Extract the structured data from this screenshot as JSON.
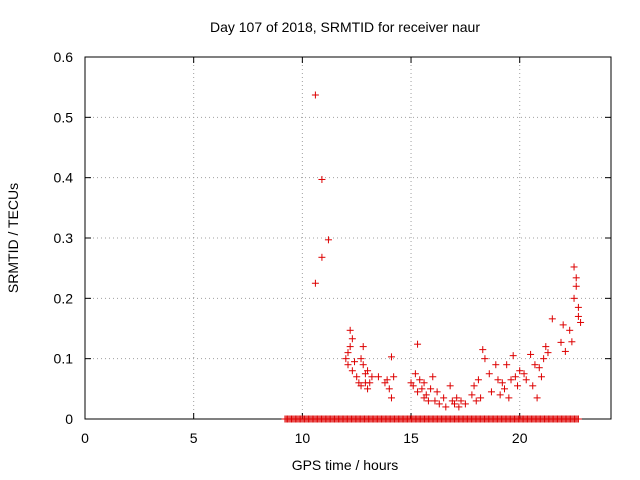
{
  "chart_data": {
    "type": "scatter",
    "title": "Day 107 of 2018, SRMTID for receiver naur",
    "xlabel": "GPS time / hours",
    "ylabel": "SRMTID / TECUs",
    "xlim": [
      0,
      24.2
    ],
    "ylim": [
      0,
      0.6
    ],
    "xticks": [
      0,
      5,
      10,
      15,
      20
    ],
    "xtick_labels": [
      "0",
      "5",
      "10",
      "15",
      "20"
    ],
    "yticks": [
      0,
      0.1,
      0.2,
      0.3,
      0.4,
      0.5,
      0.6
    ],
    "ytick_labels": [
      "0",
      "0.1",
      "0.2",
      "0.3",
      "0.4",
      "0.5",
      "0.6"
    ],
    "grid": true,
    "marker": "+",
    "marker_color": "#dd0000",
    "series": [
      {
        "name": "SRMTID",
        "x": [
          10.6,
          10.9,
          10.9,
          11.2,
          10.6,
          12.0,
          12.1,
          12.1,
          12.2,
          12.2,
          12.3,
          12.3,
          12.4,
          12.5,
          12.6,
          12.7,
          12.7,
          12.8,
          12.8,
          12.9,
          12.9,
          13.0,
          13.0,
          13.1,
          13.2,
          13.5,
          13.8,
          14.0,
          14.1,
          14.2,
          14.1,
          13.9,
          15.0,
          15.1,
          15.2,
          15.3,
          15.3,
          15.4,
          15.5,
          15.6,
          15.6,
          15.7,
          15.8,
          15.9,
          16.0,
          16.1,
          16.2,
          16.3,
          16.5,
          16.6,
          16.8,
          16.9,
          17.0,
          17.1,
          17.2,
          17.3,
          17.5,
          17.8,
          17.9,
          18.0,
          18.1,
          18.2,
          18.3,
          18.4,
          18.6,
          18.7,
          18.9,
          19.0,
          19.1,
          19.2,
          19.3,
          19.4,
          19.5,
          19.6,
          19.7,
          19.8,
          19.9,
          20.0,
          20.2,
          20.3,
          20.5,
          20.6,
          20.7,
          20.8,
          20.9,
          21.0,
          21.1,
          21.2,
          21.3,
          21.5,
          21.9,
          22.0,
          22.1,
          22.3,
          22.4,
          22.5,
          22.5,
          22.6,
          22.6,
          22.7,
          22.7,
          22.8
        ],
        "y": [
          0.537,
          0.397,
          0.268,
          0.297,
          0.225,
          0.1,
          0.11,
          0.09,
          0.12,
          0.147,
          0.133,
          0.08,
          0.095,
          0.07,
          0.06,
          0.1,
          0.055,
          0.12,
          0.09,
          0.06,
          0.075,
          0.08,
          0.05,
          0.06,
          0.07,
          0.07,
          0.06,
          0.05,
          0.103,
          0.07,
          0.035,
          0.065,
          0.06,
          0.055,
          0.075,
          0.045,
          0.124,
          0.065,
          0.05,
          0.035,
          0.06,
          0.04,
          0.03,
          0.05,
          0.07,
          0.03,
          0.045,
          0.025,
          0.035,
          0.02,
          0.055,
          0.03,
          0.025,
          0.035,
          0.02,
          0.03,
          0.025,
          0.04,
          0.055,
          0.03,
          0.065,
          0.035,
          0.115,
          0.1,
          0.075,
          0.045,
          0.09,
          0.065,
          0.04,
          0.06,
          0.05,
          0.09,
          0.035,
          0.065,
          0.105,
          0.07,
          0.055,
          0.08,
          0.075,
          0.065,
          0.107,
          0.055,
          0.09,
          0.035,
          0.085,
          0.07,
          0.1,
          0.12,
          0.11,
          0.166,
          0.127,
          0.156,
          0.112,
          0.147,
          0.128,
          0.2,
          0.252,
          0.22,
          0.234,
          0.17,
          0.185,
          0.16
        ],
        "zero_x_start": 9.2,
        "zero_x_end": 22.7
      }
    ]
  }
}
